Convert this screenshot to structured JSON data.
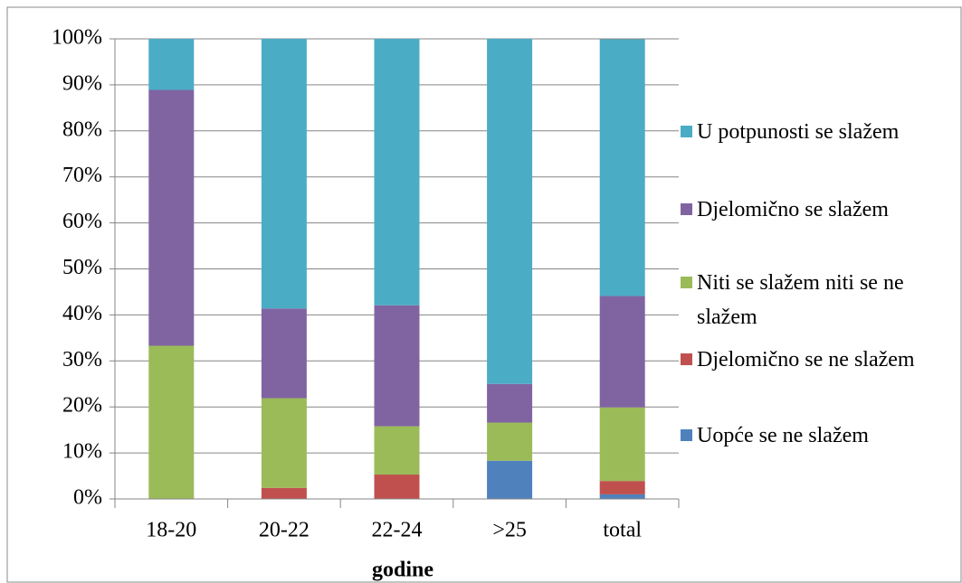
{
  "chart_data": {
    "type": "stacked_bar",
    "x_label": "godine",
    "categories": [
      "18-20",
      "20-22",
      "22-24",
      ">25",
      "total"
    ],
    "series": [
      {
        "name": "Uopće se ne slažem",
        "color": "#4f81bd",
        "values": [
          0,
          0,
          0,
          8.3,
          1
        ]
      },
      {
        "name": "Djelomično se ne slažem",
        "color": "#c0504d",
        "values": [
          0,
          2.4,
          5.3,
          0,
          2.9
        ]
      },
      {
        "name": "Niti se slažem niti se ne slažem",
        "color": "#9bbb59",
        "values": [
          33.3,
          19.5,
          10.5,
          8.3,
          16
        ]
      },
      {
        "name": "Djelomično se slažem",
        "color": "#8064a2",
        "values": [
          55.6,
          19.5,
          26.3,
          8.4,
          24.2
        ]
      },
      {
        "name": "U potpunosti se slažem",
        "color": "#4bacc6",
        "values": [
          11.1,
          58.6,
          57.9,
          75,
          55.8
        ]
      }
    ],
    "ylim": [
      0,
      100
    ],
    "yticks": [
      {
        "value": 0,
        "label": "0%"
      },
      {
        "value": 10,
        "label": "10%"
      },
      {
        "value": 20,
        "label": "20%"
      },
      {
        "value": 30,
        "label": "30%"
      },
      {
        "value": 40,
        "label": "40%"
      },
      {
        "value": 50,
        "label": "50%"
      },
      {
        "value": 60,
        "label": "60%"
      },
      {
        "value": 70,
        "label": "70%"
      },
      {
        "value": 80,
        "label": "80%"
      },
      {
        "value": 90,
        "label": "90%"
      },
      {
        "value": 100,
        "label": "100%"
      }
    ],
    "grid": true,
    "legend": "right"
  }
}
